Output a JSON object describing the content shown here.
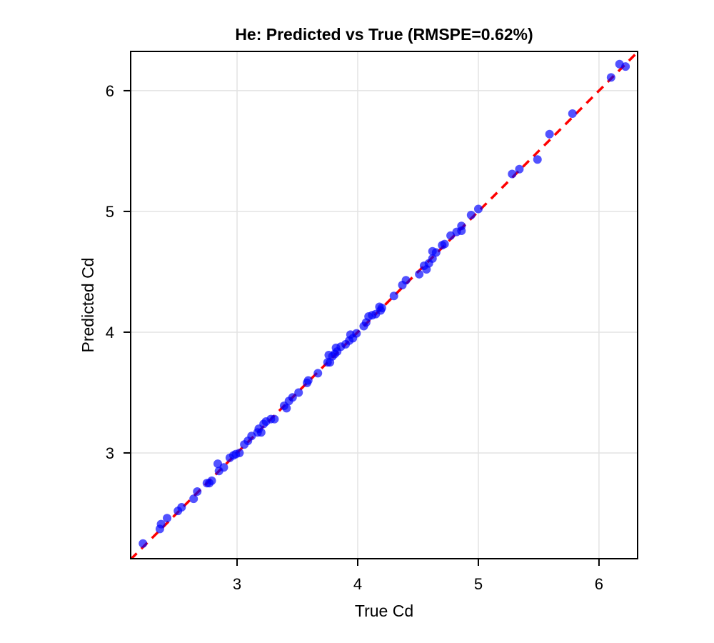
{
  "chart_data": {
    "type": "scatter",
    "title": "He: Predicted vs True (RMSPE=0.62%)",
    "xlabel": "True Cd",
    "ylabel": "Predicted Cd",
    "xlim": [
      2.118,
      6.32
    ],
    "ylim": [
      2.124,
      6.325
    ],
    "xticks": [
      3,
      4,
      5,
      6
    ],
    "yticks": [
      3,
      4,
      5,
      6
    ],
    "grid": true,
    "legend": null,
    "reference_line": {
      "label": "y = x",
      "style": "dashed",
      "color": "#ff0000"
    },
    "marker_color": "#0000ff",
    "series": [
      {
        "name": "He",
        "points": [
          [
            2.22,
            2.25
          ],
          [
            2.36,
            2.37
          ],
          [
            2.37,
            2.41
          ],
          [
            2.42,
            2.46
          ],
          [
            2.51,
            2.52
          ],
          [
            2.54,
            2.55
          ],
          [
            2.64,
            2.62
          ],
          [
            2.67,
            2.68
          ],
          [
            2.75,
            2.75
          ],
          [
            2.77,
            2.75
          ],
          [
            2.79,
            2.77
          ],
          [
            2.85,
            2.85
          ],
          [
            2.84,
            2.91
          ],
          [
            2.89,
            2.88
          ],
          [
            2.94,
            2.96
          ],
          [
            2.97,
            2.98
          ],
          [
            2.99,
            2.99
          ],
          [
            3.02,
            3.0
          ],
          [
            3.06,
            3.07
          ],
          [
            3.09,
            3.1
          ],
          [
            3.12,
            3.14
          ],
          [
            3.17,
            3.17
          ],
          [
            3.2,
            3.17
          ],
          [
            3.18,
            3.2
          ],
          [
            3.22,
            3.24
          ],
          [
            3.24,
            3.26
          ],
          [
            3.28,
            3.28
          ],
          [
            3.31,
            3.28
          ],
          [
            3.39,
            3.39
          ],
          [
            3.41,
            3.37
          ],
          [
            3.43,
            3.43
          ],
          [
            3.46,
            3.46
          ],
          [
            3.51,
            3.5
          ],
          [
            3.58,
            3.58
          ],
          [
            3.59,
            3.6
          ],
          [
            3.67,
            3.66
          ],
          [
            3.75,
            3.75
          ],
          [
            3.77,
            3.75
          ],
          [
            3.76,
            3.81
          ],
          [
            3.79,
            3.8
          ],
          [
            3.81,
            3.82
          ],
          [
            3.83,
            3.84
          ],
          [
            3.82,
            3.87
          ],
          [
            3.86,
            3.88
          ],
          [
            3.9,
            3.9
          ],
          [
            3.93,
            3.93
          ],
          [
            3.94,
            3.98
          ],
          [
            3.96,
            3.95
          ],
          [
            3.99,
            3.99
          ],
          [
            4.05,
            4.05
          ],
          [
            4.07,
            4.08
          ],
          [
            4.09,
            4.13
          ],
          [
            4.12,
            4.14
          ],
          [
            4.15,
            4.15
          ],
          [
            4.19,
            4.18
          ],
          [
            4.2,
            4.2
          ],
          [
            4.18,
            4.21
          ],
          [
            4.3,
            4.3
          ],
          [
            4.37,
            4.39
          ],
          [
            4.4,
            4.43
          ],
          [
            4.51,
            4.48
          ],
          [
            4.55,
            4.55
          ],
          [
            4.57,
            4.52
          ],
          [
            4.59,
            4.57
          ],
          [
            4.62,
            4.61
          ],
          [
            4.62,
            4.67
          ],
          [
            4.65,
            4.66
          ],
          [
            4.7,
            4.72
          ],
          [
            4.72,
            4.73
          ],
          [
            4.77,
            4.8
          ],
          [
            4.82,
            4.83
          ],
          [
            4.86,
            4.84
          ],
          [
            4.86,
            4.88
          ],
          [
            4.94,
            4.97
          ],
          [
            5.0,
            5.02
          ],
          [
            5.28,
            5.31
          ],
          [
            5.34,
            5.35
          ],
          [
            5.49,
            5.43
          ],
          [
            5.59,
            5.64
          ],
          [
            5.78,
            5.81
          ],
          [
            6.1,
            6.11
          ],
          [
            6.17,
            6.22
          ],
          [
            6.22,
            6.2
          ]
        ]
      }
    ]
  }
}
